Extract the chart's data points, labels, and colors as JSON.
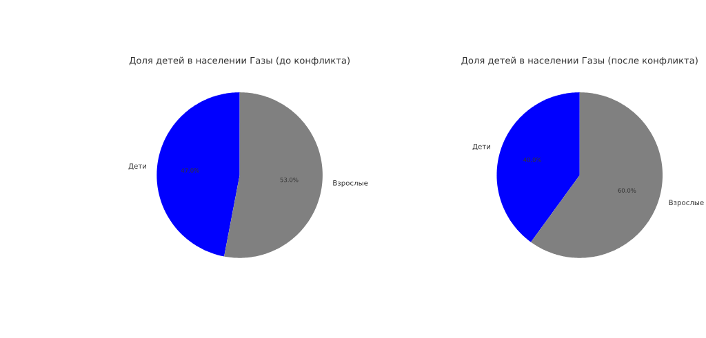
{
  "chart_data": [
    {
      "type": "pie",
      "title": "Доля детей в населении Газы (до конфликта)",
      "categories": [
        "Дети",
        "Взрослые"
      ],
      "values": [
        47,
        53
      ],
      "colors": [
        "#0000ff",
        "#808080"
      ],
      "value_labels": [
        "47.0%",
        "53.0%"
      ]
    },
    {
      "type": "pie",
      "title": "Доля детей в населении Газы (после конфликта)",
      "categories": [
        "Дети",
        "Взрослые"
      ],
      "values": [
        40,
        60
      ],
      "colors": [
        "#0000ff",
        "#808080"
      ],
      "value_labels": [
        "40.0%",
        "60.0%"
      ]
    }
  ]
}
